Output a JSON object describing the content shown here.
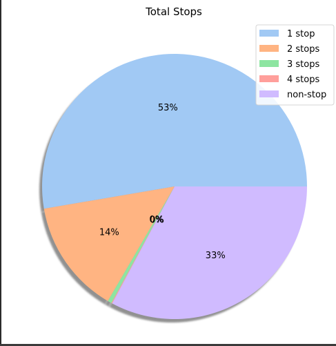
{
  "chart_data": {
    "type": "pie",
    "title": "Total Stops",
    "shadow": true,
    "legend_position": "top-right",
    "labels": [
      "1 stop",
      "2 stops",
      "3 stops",
      "4 stops",
      "non-stop"
    ],
    "values": [
      53,
      14,
      0.5,
      0.1,
      33
    ],
    "display_labels": [
      "53%",
      "14%",
      "0%",
      "0%",
      "33%"
    ],
    "colors": [
      "#a1c9f4",
      "#ffb482",
      "#8de5a1",
      "#ff9f9b",
      "#d0bbff"
    ]
  }
}
